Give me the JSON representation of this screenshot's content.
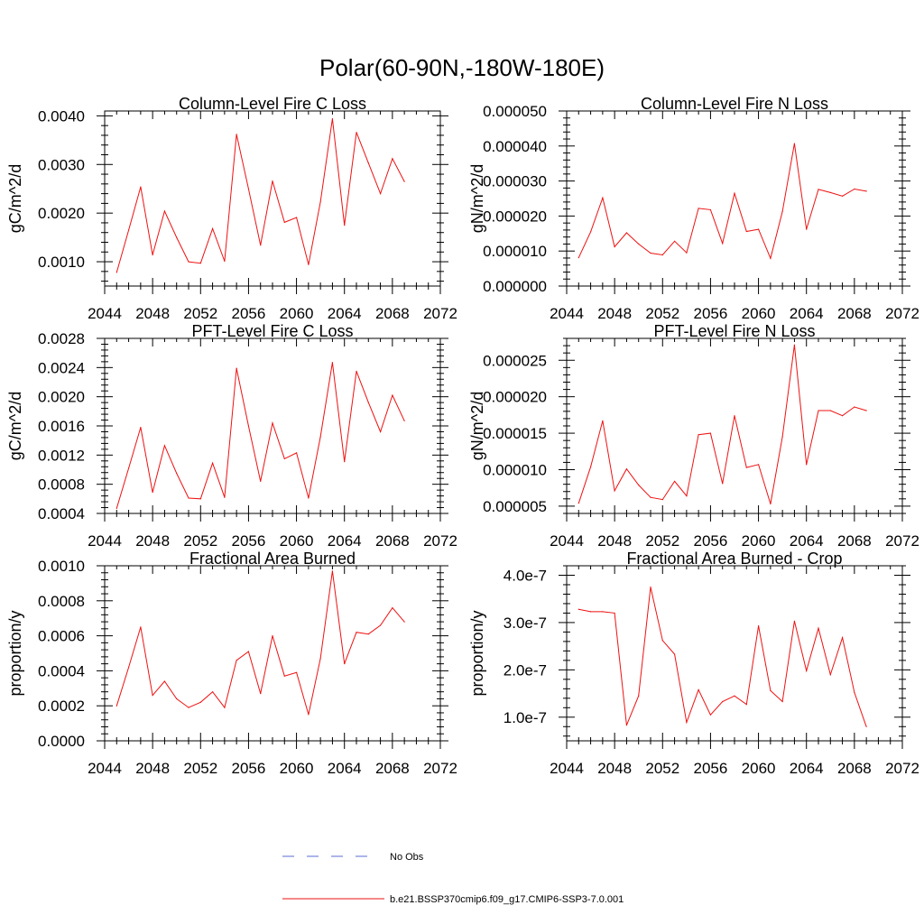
{
  "page_title": "Polar(60-90N,-180W-180E)",
  "legend": {
    "obs_label": "No Obs",
    "obs_color": "#5b6bd5",
    "model_label": "b.e21.BSSP370cmip6.f09_g17.CMIP6-SSP3-7.0.001",
    "model_color": "#ee1111"
  },
  "chart_data": [
    {
      "type": "line",
      "title": "Column-Level Fire C Loss",
      "xlabel": "",
      "ylabel": "gC/m^2/d",
      "xlim": [
        2044,
        2072
      ],
      "ylim": [
        0.0005,
        0.0041
      ],
      "xticks": [
        "2044",
        "2048",
        "2052",
        "2056",
        "2060",
        "2064",
        "2068",
        "2072"
      ],
      "yticks": [
        "0.0010",
        "0.0020",
        "0.0030",
        "0.0040"
      ],
      "x": [
        2045,
        2046,
        2047,
        2048,
        2049,
        2050,
        2051,
        2052,
        2053,
        2054,
        2055,
        2056,
        2057,
        2058,
        2059,
        2060,
        2061,
        2062,
        2063,
        2064,
        2065,
        2066,
        2067,
        2068,
        2069
      ],
      "series": [
        {
          "name": "b.e21.BSSP370cmip6.f09_g17.CMIP6-SSP3-7.0.001",
          "values": [
            0.00078,
            0.00165,
            0.00254,
            0.00114,
            0.00204,
            0.0015,
            0.001,
            0.00097,
            0.00168,
            0.00101,
            0.00362,
            0.0025,
            0.00134,
            0.00266,
            0.00181,
            0.00191,
            0.00094,
            0.00223,
            0.00394,
            0.00175,
            0.00366,
            0.00303,
            0.0024,
            0.00312,
            0.00265
          ]
        }
      ]
    },
    {
      "type": "line",
      "title": "Column-Level Fire N Loss",
      "xlabel": "",
      "ylabel": "gN/m^2/d",
      "xlim": [
        2044,
        2072
      ],
      "ylim": [
        0.0,
        5e-05
      ],
      "xticks": [
        "2044",
        "2048",
        "2052",
        "2056",
        "2060",
        "2064",
        "2068",
        "2072"
      ],
      "yticks": [
        "0.000000",
        "0.000010",
        "0.000020",
        "0.000030",
        "0.000040",
        "0.000050"
      ],
      "x": [
        2045,
        2046,
        2047,
        2048,
        2049,
        2050,
        2051,
        2052,
        2053,
        2054,
        2055,
        2056,
        2057,
        2058,
        2059,
        2060,
        2061,
        2062,
        2063,
        2064,
        2065,
        2066,
        2067,
        2068,
        2069
      ],
      "series": [
        {
          "name": "b.e21.BSSP370cmip6.f09_g17.CMIP6-SSP3-7.0.001",
          "values": [
            8.1e-06,
            1.55e-05,
            2.52e-05,
            1.12e-05,
            1.52e-05,
            1.2e-05,
            9.4e-06,
            8.9e-06,
            1.28e-05,
            9.5e-06,
            2.22e-05,
            2.18e-05,
            1.22e-05,
            2.65e-05,
            1.56e-05,
            1.62e-05,
            7.9e-06,
            2.13e-05,
            4.07e-05,
            1.62e-05,
            2.76e-05,
            2.67e-05,
            2.57e-05,
            2.77e-05,
            2.71e-05
          ]
        }
      ]
    },
    {
      "type": "line",
      "title": "PFT-Level Fire C Loss",
      "xlabel": "",
      "ylabel": "gC/m^2/d",
      "xlim": [
        2044,
        2072
      ],
      "ylim": [
        0.0004,
        0.0028
      ],
      "xticks": [
        "2044",
        "2048",
        "2052",
        "2056",
        "2060",
        "2064",
        "2068",
        "2072"
      ],
      "yticks": [
        "0.0004",
        "0.0008",
        "0.0012",
        "0.0016",
        "0.0020",
        "0.0024",
        "0.0028"
      ],
      "x": [
        2045,
        2046,
        2047,
        2048,
        2049,
        2050,
        2051,
        2052,
        2053,
        2054,
        2055,
        2056,
        2057,
        2058,
        2059,
        2060,
        2061,
        2062,
        2063,
        2064,
        2065,
        2066,
        2067,
        2068,
        2069
      ],
      "series": [
        {
          "name": "b.e21.BSSP370cmip6.f09_g17.CMIP6-SSP3-7.0.001",
          "values": [
            0.00047,
            0.00102,
            0.00158,
            0.00069,
            0.00133,
            0.00095,
            0.00061,
            0.0006,
            0.00109,
            0.00062,
            0.00239,
            0.0016,
            0.00084,
            0.00164,
            0.00115,
            0.00123,
            0.00061,
            0.00145,
            0.00247,
            0.00111,
            0.00235,
            0.00192,
            0.00152,
            0.00202,
            0.00167
          ]
        }
      ]
    },
    {
      "type": "line",
      "title": "PFT-Level Fire N Loss",
      "xlabel": "",
      "ylabel": "gN/m^2/d",
      "xlim": [
        2044,
        2072
      ],
      "ylim": [
        4e-06,
        2.8e-05
      ],
      "xticks": [
        "2044",
        "2048",
        "2052",
        "2056",
        "2060",
        "2064",
        "2068",
        "2072"
      ],
      "yticks": [
        "0.000005",
        "0.000010",
        "0.000015",
        "0.000020",
        "0.000025"
      ],
      "x": [
        2045,
        2046,
        2047,
        2048,
        2049,
        2050,
        2051,
        2052,
        2053,
        2054,
        2055,
        2056,
        2057,
        2058,
        2059,
        2060,
        2061,
        2062,
        2063,
        2064,
        2065,
        2066,
        2067,
        2068,
        2069
      ],
      "series": [
        {
          "name": "b.e21.BSSP370cmip6.f09_g17.CMIP6-SSP3-7.0.001",
          "values": [
            5.4e-06,
            1.04e-05,
            1.67e-05,
            7.1e-06,
            1.01e-05,
            7.9e-06,
            6.2e-06,
            5.9e-06,
            8.4e-06,
            6.4e-06,
            1.48e-05,
            1.5e-05,
            8.1e-06,
            1.74e-05,
            1.03e-05,
            1.07e-05,
            5.3e-06,
            1.45e-05,
            2.71e-05,
            1.07e-05,
            1.81e-05,
            1.81e-05,
            1.74e-05,
            1.86e-05,
            1.81e-05
          ]
        }
      ]
    },
    {
      "type": "line",
      "title": "Fractional Area Burned",
      "xlabel": "",
      "ylabel": "proportion/y",
      "xlim": [
        2044,
        2072
      ],
      "ylim": [
        0.0,
        0.001
      ],
      "xticks": [
        "2044",
        "2048",
        "2052",
        "2056",
        "2060",
        "2064",
        "2068",
        "2072"
      ],
      "yticks": [
        "0.0000",
        "0.0002",
        "0.0004",
        "0.0006",
        "0.0008",
        "0.0010"
      ],
      "x": [
        2045,
        2046,
        2047,
        2048,
        2049,
        2050,
        2051,
        2052,
        2053,
        2054,
        2055,
        2056,
        2057,
        2058,
        2059,
        2060,
        2061,
        2062,
        2063,
        2064,
        2065,
        2066,
        2067,
        2068,
        2069
      ],
      "series": [
        {
          "name": "b.e21.BSSP370cmip6.f09_g17.CMIP6-SSP3-7.0.001",
          "values": [
            0.0002,
            0.00042,
            0.00065,
            0.00026,
            0.00034,
            0.00024,
            0.00019,
            0.00022,
            0.00028,
            0.00019,
            0.00046,
            0.00051,
            0.00027,
            0.0006,
            0.00037,
            0.00039,
            0.00015,
            0.00047,
            0.00097,
            0.00044,
            0.00062,
            0.00061,
            0.00066,
            0.00076,
            0.00068
          ]
        }
      ]
    },
    {
      "type": "line",
      "title": "Fractional Area Burned - Crop",
      "xlabel": "",
      "ylabel": "proportion/y",
      "xlim": [
        2044,
        2072
      ],
      "ylim": [
        5e-08,
        4.2e-07
      ],
      "xticks": [
        "2044",
        "2048",
        "2052",
        "2056",
        "2060",
        "2064",
        "2068",
        "2072"
      ],
      "yticks": [
        "1.0e-7",
        "2.0e-7",
        "3.0e-7",
        "4.0e-7"
      ],
      "x": [
        2045,
        2046,
        2047,
        2048,
        2049,
        2050,
        2051,
        2052,
        2053,
        2054,
        2055,
        2056,
        2057,
        2058,
        2059,
        2060,
        2061,
        2062,
        2063,
        2064,
        2065,
        2066,
        2067,
        2068,
        2069
      ],
      "series": [
        {
          "name": "b.e21.BSSP370cmip6.f09_g17.CMIP6-SSP3-7.0.001",
          "values": [
            3.28e-07,
            3.23e-07,
            3.23e-07,
            3.2e-07,
            8.3e-08,
            1.45e-07,
            3.75e-07,
            2.62e-07,
            2.33e-07,
            8.9e-08,
            1.58e-07,
            1.05e-07,
            1.33e-07,
            1.45e-07,
            1.27e-07,
            2.93e-07,
            1.56e-07,
            1.33e-07,
            3.03e-07,
            1.98e-07,
            2.88e-07,
            1.9e-07,
            2.68e-07,
            1.52e-07,
            8e-08
          ]
        }
      ]
    }
  ]
}
